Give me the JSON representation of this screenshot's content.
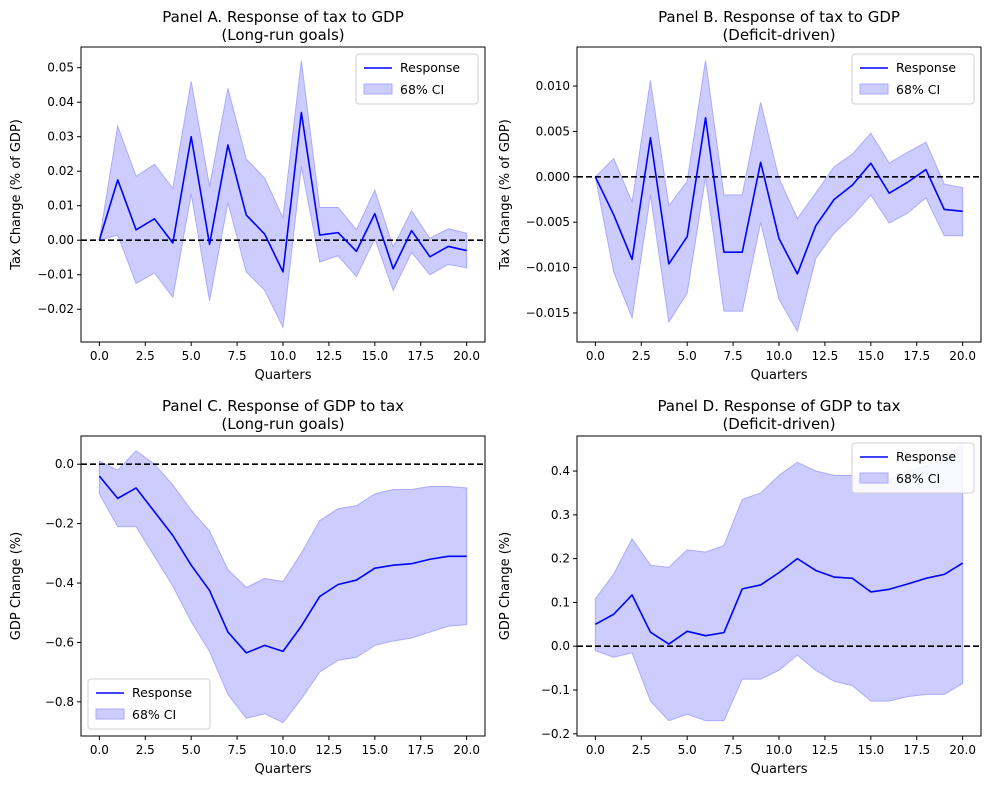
{
  "colors": {
    "response_line": "#0000ff",
    "ci_fill": "#ccccff",
    "ci_edge": "#aaaaff",
    "zero_line": "#000000"
  },
  "chart_data": [
    {
      "type": "line",
      "title": "Panel A. Response of tax to GDP\n(Long-run goals)",
      "xlabel": "Quarters",
      "ylabel": "Tax Change (% of GDP)",
      "xlim": [
        -1,
        21
      ],
      "ylim": [
        -0.0295,
        0.056
      ],
      "xticks": [
        0,
        2.5,
        5,
        7.5,
        10,
        12.5,
        15,
        17.5,
        20
      ],
      "xtick_labels": [
        "0.0",
        "2.5",
        "5.0",
        "7.5",
        "10.0",
        "12.5",
        "15.0",
        "17.5",
        "20.0"
      ],
      "yticks": [
        -0.02,
        -0.01,
        0.0,
        0.01,
        0.02,
        0.03,
        0.04,
        0.05
      ],
      "ytick_labels": [
        "−0.02",
        "−0.01",
        "0.00",
        "0.01",
        "0.02",
        "0.03",
        "0.04",
        "0.05"
      ],
      "legend_position": "top-right",
      "zero_line": true,
      "x": [
        0,
        1,
        2,
        3,
        4,
        5,
        6,
        7,
        8,
        9,
        10,
        11,
        12,
        13,
        14,
        15,
        16,
        17,
        18,
        19,
        20
      ],
      "series": [
        {
          "name": "Response",
          "kind": "line",
          "values": [
            0.0,
            0.0175,
            0.003,
            0.0062,
            -0.0008,
            0.03,
            -0.0012,
            0.0276,
            0.0073,
            0.0018,
            -0.0092,
            0.037,
            0.0015,
            0.0022,
            -0.0032,
            0.0077,
            -0.0083,
            0.0028,
            -0.0048,
            -0.0018,
            -0.003
          ]
        },
        {
          "name": "68% CI",
          "kind": "band",
          "lower": [
            0.0,
            0.0015,
            -0.0125,
            -0.0095,
            -0.0165,
            0.0135,
            -0.0175,
            0.011,
            -0.0092,
            -0.0145,
            -0.0252,
            0.0215,
            -0.0063,
            -0.0045,
            -0.0105,
            0.0005,
            -0.0145,
            -0.0035,
            -0.01,
            -0.007,
            -0.008
          ],
          "upper": [
            0.0,
            0.033,
            0.0185,
            0.022,
            0.015,
            0.046,
            0.0155,
            0.044,
            0.0235,
            0.018,
            0.0065,
            0.052,
            0.0095,
            0.0095,
            0.003,
            0.0145,
            -0.002,
            0.0085,
            0.0005,
            0.0033,
            0.002
          ]
        }
      ]
    },
    {
      "type": "line",
      "title": "Panel B. Response of tax to GDP\n(Deficit-driven)",
      "xlabel": "Quarters",
      "ylabel": "Tax Change (% of GDP)",
      "xlim": [
        -1,
        21
      ],
      "ylim": [
        -0.0182,
        0.0143
      ],
      "xticks": [
        0,
        2.5,
        5,
        7.5,
        10,
        12.5,
        15,
        17.5,
        20
      ],
      "xtick_labels": [
        "0.0",
        "2.5",
        "5.0",
        "7.5",
        "10.0",
        "12.5",
        "15.0",
        "17.5",
        "20.0"
      ],
      "yticks": [
        -0.015,
        -0.01,
        -0.005,
        0.0,
        0.005,
        0.01
      ],
      "ytick_labels": [
        "−0.015",
        "−0.010",
        "−0.005",
        "0.000",
        "0.005",
        "0.010"
      ],
      "legend_position": "top-right",
      "zero_line": true,
      "x": [
        0,
        1,
        2,
        3,
        4,
        5,
        6,
        7,
        8,
        9,
        10,
        11,
        12,
        13,
        14,
        15,
        16,
        17,
        18,
        19,
        20
      ],
      "series": [
        {
          "name": "Response",
          "kind": "line",
          "values": [
            0.0,
            -0.0042,
            -0.0091,
            0.0043,
            -0.0096,
            -0.0066,
            0.0065,
            -0.0083,
            -0.0083,
            0.0016,
            -0.0068,
            -0.0107,
            -0.0054,
            -0.0025,
            -0.0009,
            0.0015,
            -0.0018,
            -0.0006,
            0.0008,
            -0.0036,
            -0.0038
          ]
        },
        {
          "name": "68% CI",
          "kind": "band",
          "lower": [
            0.0,
            -0.0105,
            -0.0155,
            -0.002,
            -0.016,
            -0.0128,
            0.0,
            -0.0148,
            -0.0148,
            -0.005,
            -0.0135,
            -0.017,
            -0.009,
            -0.0062,
            -0.0043,
            -0.002,
            -0.0051,
            -0.004,
            -0.0023,
            -0.0065,
            -0.0065
          ]
        },
        {
          "name": "",
          "kind": "band_upper_only",
          "upper": [
            0.0,
            0.002,
            -0.0028,
            0.0106,
            -0.0032,
            -0.0005,
            0.0128,
            -0.002,
            -0.002,
            0.0082,
            -0.0002,
            -0.0046,
            -0.0018,
            0.0011,
            0.0025,
            0.0048,
            0.0015,
            0.0027,
            0.0038,
            -0.0008,
            -0.0012
          ]
        }
      ]
    },
    {
      "type": "line",
      "title": "Panel C. Response of GDP to tax\n(Long-run goals)",
      "xlabel": "Quarters",
      "ylabel": "GDP Change (%)",
      "xlim": [
        -1,
        21
      ],
      "ylim": [
        -0.915,
        0.095
      ],
      "xticks": [
        0,
        2.5,
        5,
        7.5,
        10,
        12.5,
        15,
        17.5,
        20
      ],
      "xtick_labels": [
        "0.0",
        "2.5",
        "5.0",
        "7.5",
        "10.0",
        "12.5",
        "15.0",
        "17.5",
        "20.0"
      ],
      "yticks": [
        -0.8,
        -0.6,
        -0.4,
        -0.2,
        0.0
      ],
      "ytick_labels": [
        "−0.8",
        "−0.6",
        "−0.4",
        "−0.2",
        "0.0"
      ],
      "legend_position": "bottom-left",
      "zero_line": true,
      "x": [
        0,
        1,
        2,
        3,
        4,
        5,
        6,
        7,
        8,
        9,
        10,
        11,
        12,
        13,
        14,
        15,
        16,
        17,
        18,
        19,
        20
      ],
      "series": [
        {
          "name": "Response",
          "kind": "line",
          "values": [
            -0.04,
            -0.115,
            -0.08,
            -0.16,
            -0.24,
            -0.34,
            -0.425,
            -0.565,
            -0.635,
            -0.61,
            -0.63,
            -0.545,
            -0.445,
            -0.405,
            -0.39,
            -0.35,
            -0.34,
            -0.335,
            -0.32,
            -0.31,
            -0.31
          ]
        },
        {
          "name": "68% CI",
          "kind": "band",
          "lower": [
            -0.1,
            -0.21,
            -0.21,
            -0.31,
            -0.41,
            -0.53,
            -0.63,
            -0.775,
            -0.855,
            -0.84,
            -0.87,
            -0.79,
            -0.7,
            -0.66,
            -0.65,
            -0.61,
            -0.595,
            -0.585,
            -0.565,
            -0.545,
            -0.54
          ],
          "upper": [
            0.01,
            -0.02,
            0.045,
            0.0,
            -0.07,
            -0.155,
            -0.225,
            -0.355,
            -0.415,
            -0.385,
            -0.395,
            -0.3,
            -0.19,
            -0.15,
            -0.14,
            -0.1,
            -0.085,
            -0.085,
            -0.075,
            -0.075,
            -0.08
          ]
        }
      ]
    },
    {
      "type": "line",
      "title": "Panel D. Response of GDP to tax\n(Deficit-driven)",
      "xlabel": "Quarters",
      "ylabel": "GDP Change (%)",
      "xlim": [
        -1,
        21
      ],
      "ylim": [
        -0.205,
        0.48
      ],
      "xticks": [
        0,
        2.5,
        5,
        7.5,
        10,
        12.5,
        15,
        17.5,
        20
      ],
      "xtick_labels": [
        "0.0",
        "2.5",
        "5.0",
        "7.5",
        "10.0",
        "12.5",
        "15.0",
        "17.5",
        "20.0"
      ],
      "yticks": [
        -0.2,
        -0.1,
        0.0,
        0.1,
        0.2,
        0.3,
        0.4
      ],
      "ytick_labels": [
        "−0.2",
        "−0.1",
        "0.0",
        "0.1",
        "0.2",
        "0.3",
        "0.4"
      ],
      "legend_position": "top-right",
      "zero_line": true,
      "x": [
        0,
        1,
        2,
        3,
        4,
        5,
        6,
        7,
        8,
        9,
        10,
        11,
        12,
        13,
        14,
        15,
        16,
        17,
        18,
        19,
        20
      ],
      "series": [
        {
          "name": "Response",
          "kind": "line",
          "values": [
            0.05,
            0.073,
            0.117,
            0.032,
            0.005,
            0.034,
            0.024,
            0.031,
            0.131,
            0.14,
            0.168,
            0.2,
            0.173,
            0.158,
            0.155,
            0.124,
            0.13,
            0.142,
            0.155,
            0.164,
            0.19
          ]
        },
        {
          "name": "68% CI",
          "kind": "band",
          "lower": [
            -0.01,
            -0.025,
            -0.015,
            -0.125,
            -0.17,
            -0.155,
            -0.17,
            -0.17,
            -0.075,
            -0.075,
            -0.055,
            -0.02,
            -0.055,
            -0.08,
            -0.09,
            -0.125,
            -0.125,
            -0.115,
            -0.11,
            -0.11,
            -0.085
          ],
          "upper": [
            0.108,
            0.165,
            0.245,
            0.185,
            0.18,
            0.22,
            0.215,
            0.23,
            0.335,
            0.35,
            0.39,
            0.42,
            0.4,
            0.39,
            0.39,
            0.37,
            0.38,
            0.4,
            0.41,
            0.43,
            0.46
          ]
        }
      ]
    }
  ]
}
